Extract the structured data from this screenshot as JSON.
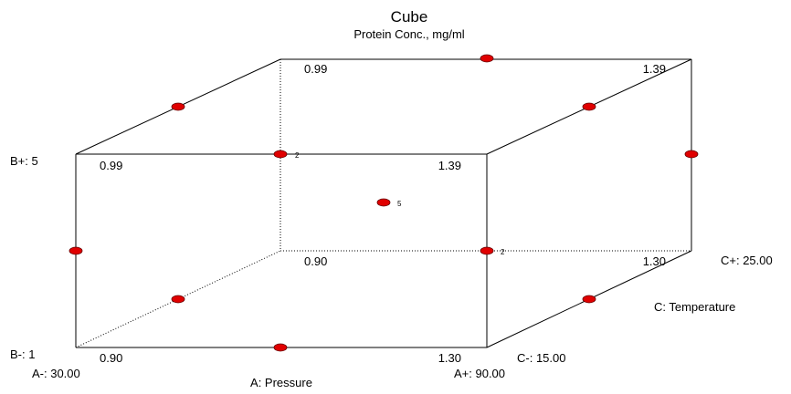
{
  "title": "Cube",
  "subtitle": "Protein Conc., mg/ml",
  "factors": {
    "a": {
      "name": "A: Pressure",
      "low": "A-: 30.00",
      "high": "A+: 90.00"
    },
    "b": {
      "low": "B-: 1",
      "high": "B+: 5"
    },
    "c": {
      "name": "C: Temperature",
      "low": "C-: 15.00",
      "high": "C+: 25.00"
    }
  },
  "corners": {
    "front_bottom_left": "0.90",
    "front_bottom_right": "1.30",
    "front_top_left": "0.99",
    "front_top_right": "1.39",
    "back_bottom_left": "0.90",
    "back_bottom_right": "1.30",
    "back_top_left": "0.99",
    "back_top_right": "1.39"
  },
  "replicate_counts": {
    "front_top_mid": "2",
    "front_right_mid": "2",
    "center": "5"
  },
  "colors": {
    "point_fill": "#e00000",
    "edge": "#000000"
  }
}
